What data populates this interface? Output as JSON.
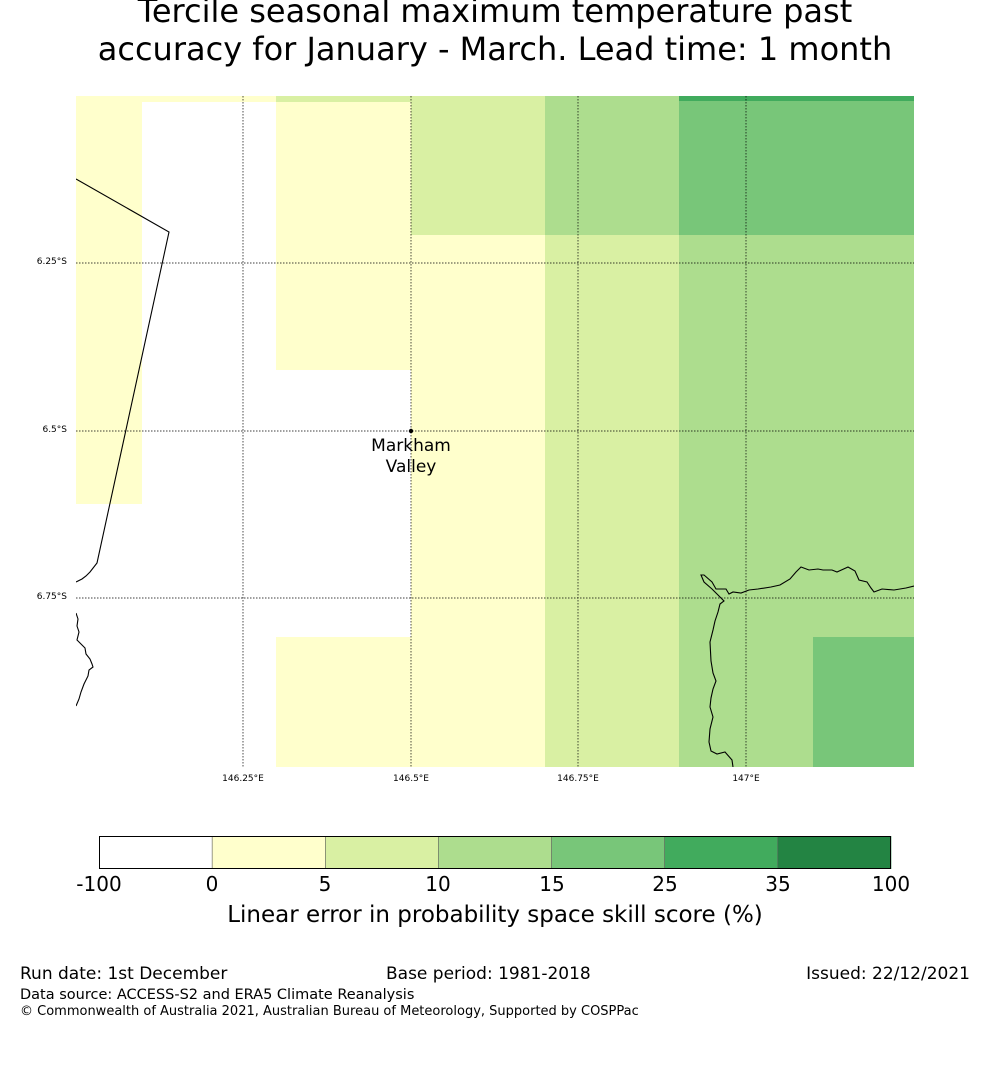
{
  "title": {
    "line1": "Tercile seasonal maximum temperature past",
    "line2": "accuracy for January - March. Lead time: 1 month"
  },
  "map": {
    "lat_labels": [
      "6.25°S",
      "6.5°S",
      "6.75°S"
    ],
    "lon_labels": [
      "146.25°E",
      "146.5°E",
      "146.75°E",
      "147°E"
    ],
    "place": {
      "name_line1": "Markham",
      "name_line2": "Valley"
    },
    "cell_colors": {
      "0-5": "#ffffcc",
      "5-10": "#d9f0a3",
      "10-15": "#addd8e",
      "15-25": "#78c679",
      "25-35": "#41ab5d"
    }
  },
  "colorbar": {
    "ticks": [
      "-100",
      "0",
      "5",
      "10",
      "15",
      "25",
      "35",
      "100"
    ],
    "colors": [
      "#ffffff",
      "#ffffcc",
      "#d9f0a3",
      "#addd8e",
      "#78c679",
      "#41ab5d",
      "#238443"
    ],
    "label": "Linear error in probability space skill score (%)"
  },
  "footer": {
    "run_date": "Run date: 1st December",
    "base_period": "Base period: 1981-2018",
    "issued": "Issued: 22/12/2021",
    "data_source": "Data source: ACCESS-S2 and ERA5 Climate Reanalysis",
    "copyright": "© Commonwealth of Australia 2021, Australian Bureau of Meteorology, Supported by COSPPac"
  }
}
